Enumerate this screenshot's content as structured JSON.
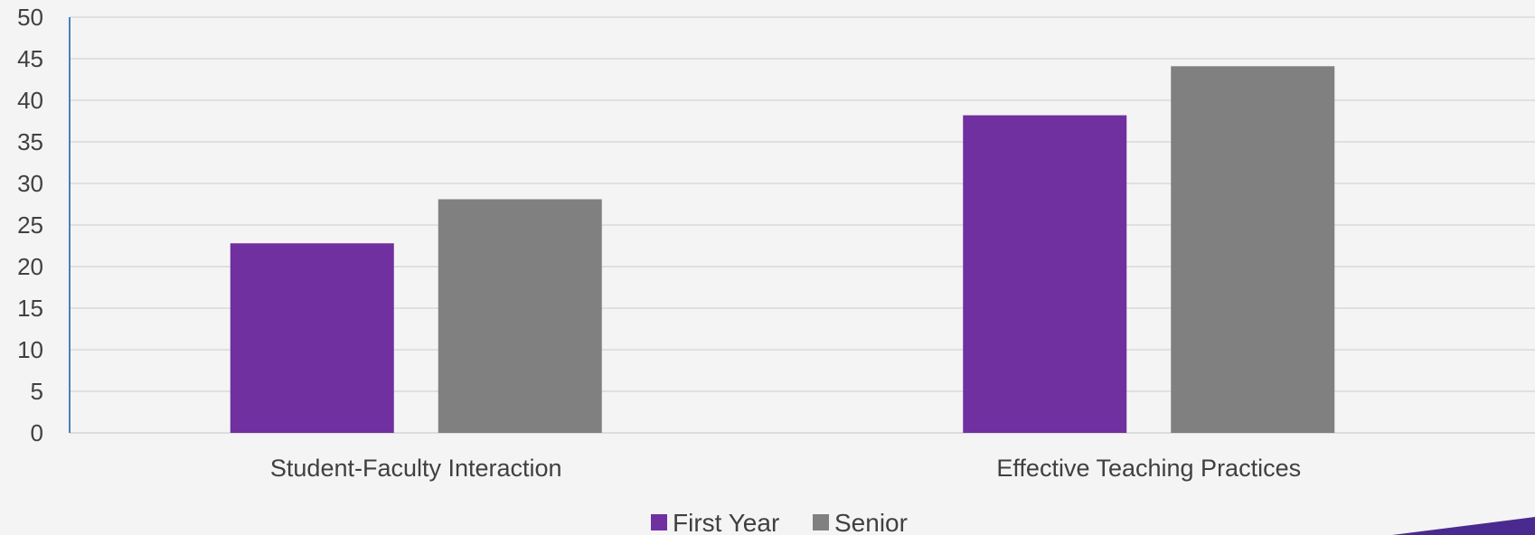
{
  "chart_data": {
    "type": "bar",
    "categories": [
      "Student-Faculty Interaction",
      "Effective Teaching Practices"
    ],
    "series": [
      {
        "name": "First Year",
        "color": "#7030a0",
        "values": [
          22.8,
          38.2
        ]
      },
      {
        "name": "Senior",
        "color": "#808080",
        "values": [
          28.1,
          44.1
        ]
      }
    ],
    "ylim": [
      0,
      50
    ],
    "yticks": [
      "0",
      "5",
      "10",
      "15",
      "20",
      "25",
      "30",
      "35",
      "40",
      "45",
      "50"
    ],
    "grid": true,
    "legend_position": "bottom",
    "title": "",
    "xlabel": "",
    "ylabel": ""
  },
  "colors": {
    "background": "#f4f4f4",
    "gridline": "#d9d9d9",
    "axis": "#4a7ebb",
    "accent": "#4b2a8f"
  }
}
